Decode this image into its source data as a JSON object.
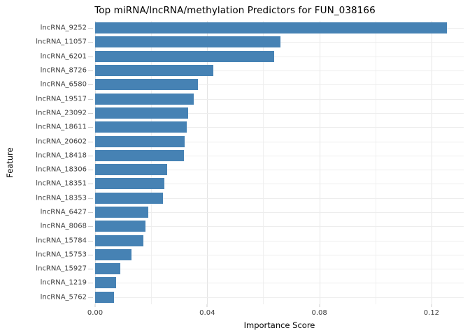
{
  "chart_data": {
    "type": "bar",
    "orientation": "horizontal",
    "title": "Top miRNA/lncRNA/methylation Predictors for FUN_038166",
    "xlabel": "Importance Score",
    "ylabel": "Feature",
    "categories": [
      "lncRNA_9252",
      "lncRNA_11057",
      "lncRNA_6201",
      "lncRNA_8726",
      "lncRNA_6580",
      "lncRNA_19517",
      "lncRNA_23092",
      "lncRNA_18611",
      "lncRNA_20602",
      "lncRNA_18418",
      "lncRNA_18306",
      "lncRNA_18351",
      "lncRNA_18353",
      "lncRNA_6427",
      "lncRNA_8068",
      "lncRNA_15784",
      "lncRNA_15753",
      "lncRNA_15927",
      "lncRNA_1219",
      "lncRNA_5762"
    ],
    "values": [
      0.1255,
      0.0662,
      0.064,
      0.0422,
      0.0366,
      0.0353,
      0.0331,
      0.0327,
      0.032,
      0.0318,
      0.0257,
      0.0247,
      0.0243,
      0.019,
      0.0179,
      0.0173,
      0.013,
      0.0091,
      0.0076,
      0.0068
    ],
    "xlim": [
      0,
      0.1315
    ],
    "xticks": [
      0.0,
      0.04,
      0.08,
      0.12
    ],
    "xtick_labels": [
      "0.00",
      "0.04",
      "0.08",
      "0.12"
    ],
    "minor_gridlines": [
      0.02,
      0.06,
      0.1
    ],
    "grid": true,
    "legend": "none",
    "bar_color": "#4682b4",
    "major_grid_color": "#e4e4e4",
    "minor_grid_color": "#f0f0f0",
    "tick_color": "#cccccc",
    "text_color": "#3d3d3d"
  }
}
